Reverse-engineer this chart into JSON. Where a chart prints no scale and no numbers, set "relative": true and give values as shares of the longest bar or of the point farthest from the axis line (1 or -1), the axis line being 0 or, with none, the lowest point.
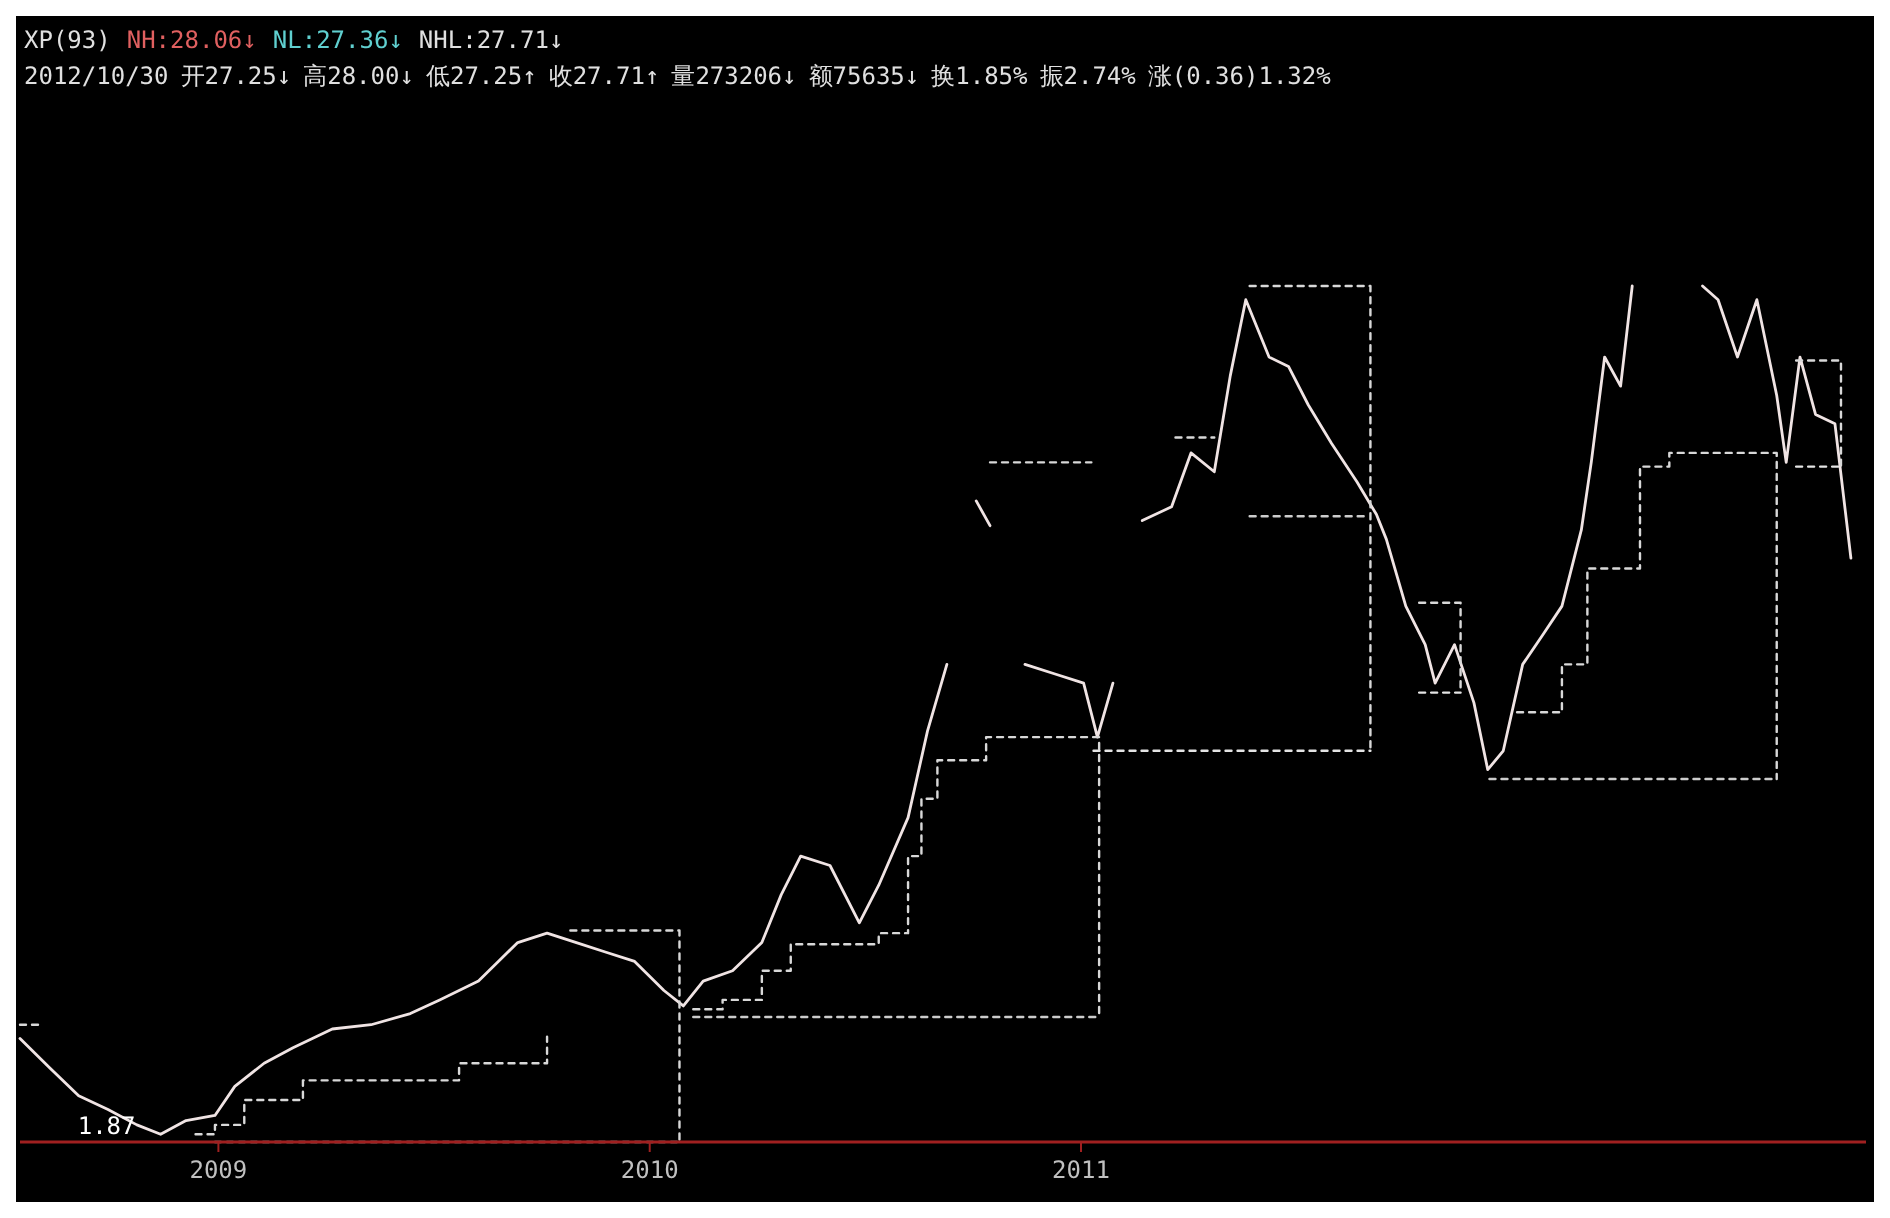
{
  "chart_data": {
    "type": "line",
    "relative": true,
    "title": "XP(93)",
    "annotations": [
      "NH:28.06↓",
      "NL:27.36↓",
      "NHL:27.71↓",
      "2012/10/30",
      "开27.25↓",
      "高28.00↓",
      "低27.25↑",
      "收27.71↑",
      "量273206↓",
      "额75635↓",
      "换1.85%",
      "振2.74%",
      "涨(0.36)1.32%",
      {
        "text": "1.87",
        "x": 2008.947,
        "y": 0
      }
    ],
    "xlim": [
      2008.54,
      2012.82
    ],
    "xticks": [
      2009,
      2010,
      2011
    ],
    "series": [
      {
        "type": "line",
        "color": "#f0e4e4",
        "x": [
          2008.54,
          2008.608,
          2008.676,
          2008.744,
          2008.811,
          2008.866,
          2008.925,
          2008.992,
          2009.038,
          2009.106,
          2009.173,
          2009.264,
          2009.354,
          2009.445,
          2009.513,
          2009.603,
          2009.649,
          2009.694,
          2009.762,
          2009.83,
          2009.897,
          2009.965,
          2010.033,
          2010.078,
          2010.124,
          2010.192,
          2010.26,
          2010.305,
          2010.35,
          2010.418,
          2010.486,
          2010.531,
          2010.599,
          2010.644,
          2010.689,
          2010.703,
          2010.757,
          2010.789,
          2010.825,
          2010.87,
          2010.938,
          2011.006,
          2011.038,
          2011.074,
          2011.097,
          2011.142,
          2011.21,
          2011.255,
          2011.309,
          2011.346,
          2011.382,
          2011.436,
          2011.481,
          2011.527,
          2011.581,
          2011.64,
          2011.685,
          2011.708,
          2011.753,
          2011.798,
          2011.821,
          2011.866,
          2011.911,
          2011.943,
          2011.979,
          2012.024,
          2012.07,
          2012.115,
          2012.16,
          2012.183,
          2012.214,
          2012.251,
          2012.278,
          2012.296,
          2012.423,
          2012.441,
          2012.477,
          2012.522,
          2012.567,
          2012.613,
          2012.635,
          2012.667,
          2012.703,
          2012.748,
          2012.785
        ],
        "values": [
          0.121,
          0.087,
          0.054,
          0.038,
          0.02,
          0.009,
          0.025,
          0.031,
          0.065,
          0.092,
          0.11,
          0.132,
          0.137,
          0.15,
          0.166,
          0.188,
          0.211,
          0.233,
          0.244,
          0.233,
          0.222,
          0.211,
          0.177,
          0.159,
          0.188,
          0.2,
          0.233,
          0.289,
          0.334,
          0.323,
          0.256,
          0.3,
          0.379,
          0.48,
          0.558,
          null,
          0.749,
          0.72,
          null,
          0.558,
          0.547,
          0.536,
          0.473,
          0.536,
          null,
          0.726,
          0.742,
          0.805,
          0.783,
          0.895,
          0.984,
          0.917,
          0.906,
          0.861,
          0.816,
          0.771,
          0.733,
          0.704,
          0.626,
          0.581,
          0.536,
          0.581,
          0.513,
          0.435,
          0.457,
          0.558,
          0.592,
          0.626,
          0.715,
          0.794,
          0.917,
          0.883,
          1,
          null,
          null,
          1,
          0.984,
          0.917,
          0.984,
          0.872,
          0.794,
          0.917,
          0.85,
          0.839,
          0.682
        ]
      },
      {
        "type": "step",
        "line_style": "dashed",
        "color": "#d8d8d8",
        "x": [
          2008.947,
          2008.992,
          2009.06,
          2009.196,
          2009.558,
          2009.762,
          2010.078,
          2010.101,
          2010.169,
          2010.26,
          2010.327,
          2010.395,
          2010.531,
          2010.599,
          2010.63,
          2010.667,
          2010.78,
          2011.02,
          2011.042,
          2011.047,
          2012.011,
          2012.115,
          2012.174,
          2012.26,
          2012.296,
          2012.364,
          2012.613
        ],
        "values": [
          0.009,
          0.02,
          0.049,
          0.072,
          0.092,
          0.123,
          null,
          0.155,
          0.166,
          0.2,
          0.231,
          0.231,
          0.244,
          0.334,
          0.401,
          0.446,
          0.473,
          0.473,
          0.146,
          null,
          0.502,
          0.558,
          0.67,
          0.67,
          0.789,
          0.805,
          0.424
        ]
      },
      {
        "type": "step",
        "line_style": "dashed",
        "color": "#d8d8d8",
        "x": [
          2008.54,
          2008.594,
          2008.599,
          2009.816,
          2010.069,
          2010.074,
          2010.789,
          2011.024,
          2011.029,
          2011.219,
          2011.309,
          2011.314,
          2011.391,
          2011.671,
          2011.676,
          2011.784,
          2011.88,
          2011.884,
          2012.658,
          2012.762
        ],
        "values": [
          0.137,
          0.137,
          null,
          0.247,
          0,
          null,
          0.794,
          0.794,
          null,
          0.823,
          0.823,
          null,
          1,
          0.457,
          null,
          0.63,
          0.525,
          null,
          0.913,
          0.789
        ]
      },
      {
        "type": "step",
        "line_style": "dashed",
        "color": "#cccccc",
        "x": [
          2008.992,
          2010.069,
          2010.074,
          2010.101,
          2011.042,
          2011.047,
          2011.391,
          2011.662,
          2011.667,
          2011.947,
          2012.613
        ],
        "values": [
          0,
          0,
          null,
          0.146,
          0.146,
          null,
          0.731,
          0.731,
          null,
          0.424,
          0.424
        ]
      },
      {
        "type": "step",
        "line_style": "dashed",
        "color": "#e4e4e4",
        "x": [
          2011.029,
          2011.671,
          2011.676,
          2011.784,
          2011.88,
          2011.884,
          2012.658,
          2012.762
        ],
        "values": [
          0.457,
          0.457,
          null,
          0.525,
          0.525,
          null,
          0.789,
          0.789
        ]
      }
    ]
  }
}
